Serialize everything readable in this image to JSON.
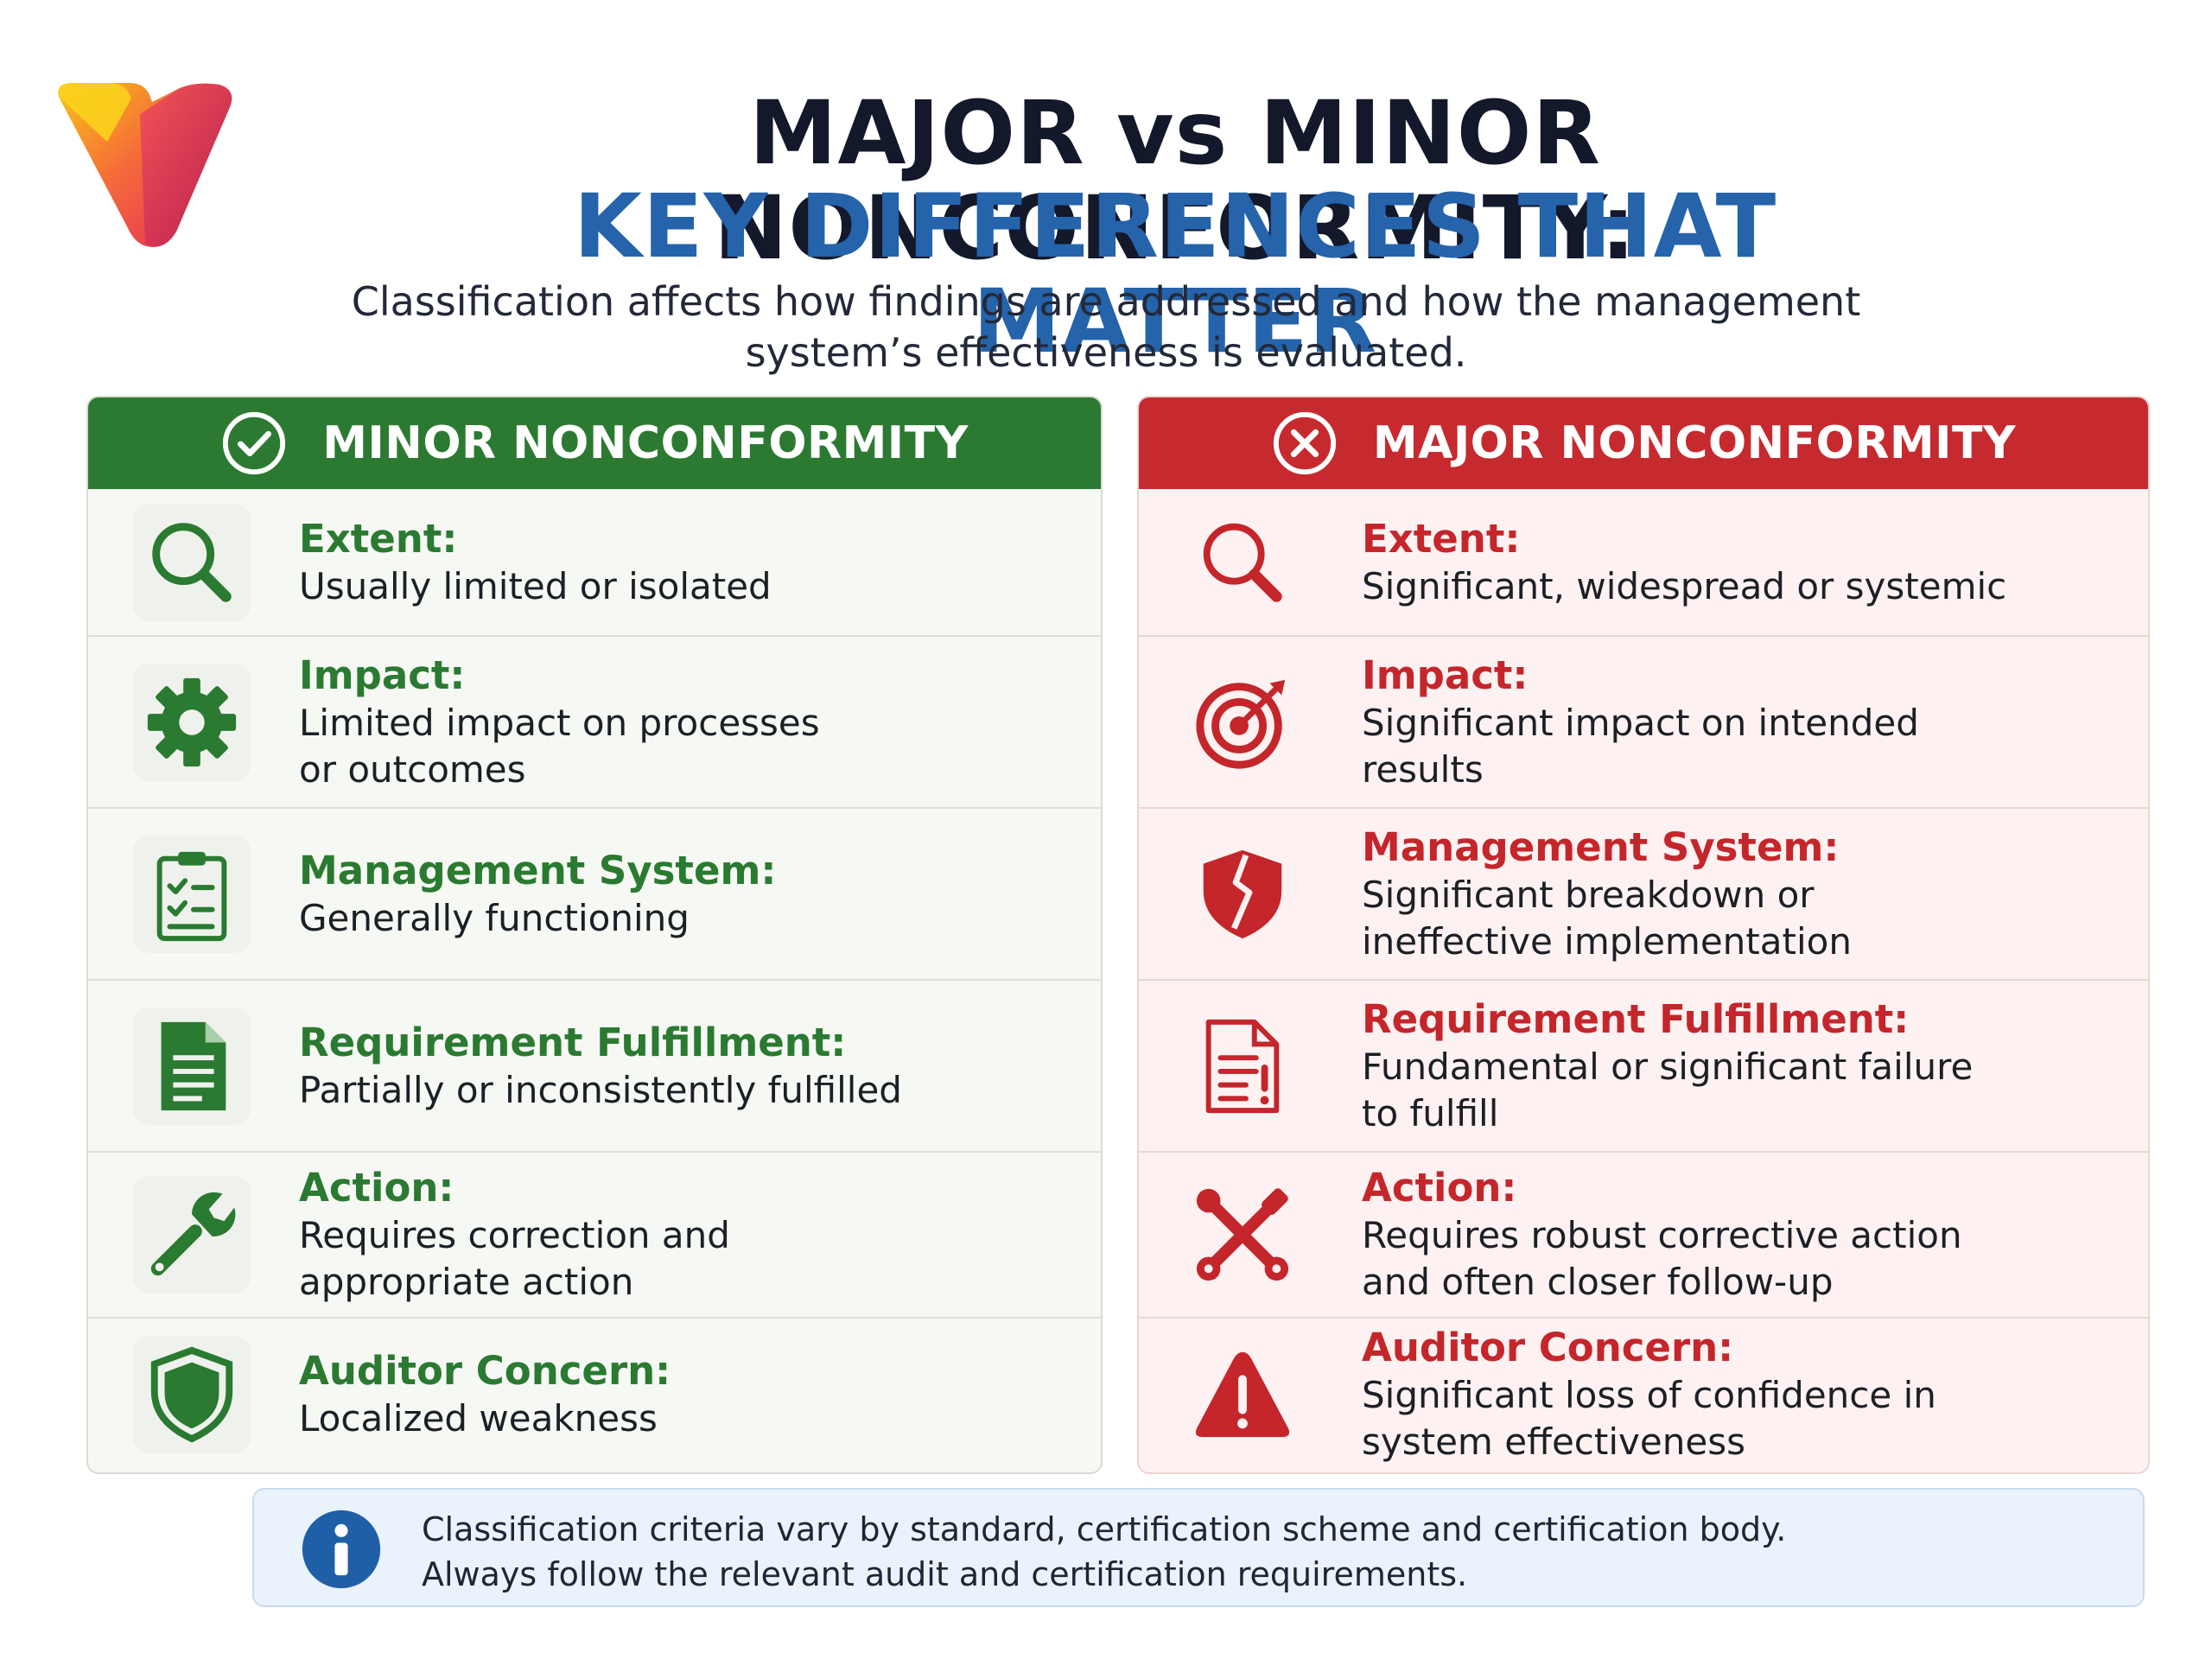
{
  "title_line1": "MAJOR vs MINOR NONCONFORMITY:",
  "title_line2": "KEY DIFFERENCES THAT MATTER",
  "subtitle": "Classification affects how findings are addressed and how the management system’s effectiveness is evaluated.",
  "colors": {
    "minor_accent": "#2c7a32",
    "major_accent": "#c62a2f",
    "title_blue": "#2563ab",
    "info_blue": "#1f5fa8"
  },
  "minor": {
    "heading": "MINOR NONCONFORMITY",
    "heading_icon": "check-circle-icon",
    "rows": [
      {
        "label": "Extent:",
        "desc": "Usually limited or isolated",
        "icon": "magnifier-icon"
      },
      {
        "label": "Impact:",
        "desc": "Limited impact on processes\nor outcomes",
        "icon": "gear-icon"
      },
      {
        "label": "Management System:",
        "desc": "Generally functioning",
        "icon": "clipboard-checklist-icon"
      },
      {
        "label": "Requirement Fulfillment:",
        "desc": "Partially or inconsistently fulfilled",
        "icon": "document-icon"
      },
      {
        "label": "Action:",
        "desc": "Requires correction and\nappropriate action",
        "icon": "wrench-icon"
      },
      {
        "label": "Auditor Concern:",
        "desc": "Localized weakness",
        "icon": "shield-icon"
      }
    ]
  },
  "major": {
    "heading": "MAJOR NONCONFORMITY",
    "heading_icon": "x-circle-icon",
    "rows": [
      {
        "label": "Extent:",
        "desc": "Significant, widespread or systemic",
        "icon": "magnifier-icon"
      },
      {
        "label": "Impact:",
        "desc": "Significant impact on intended\nresults",
        "icon": "target-icon"
      },
      {
        "label": "Management System:",
        "desc": "Significant breakdown or\nineffective implementation",
        "icon": "broken-shield-icon"
      },
      {
        "label": "Requirement Fulfillment:",
        "desc": "Fundamental or significant failure\nto fulfill",
        "icon": "document-alert-icon"
      },
      {
        "label": "Action:",
        "desc": "Requires robust corrective action\nand often closer follow-up",
        "icon": "crossed-tools-icon"
      },
      {
        "label": "Auditor Concern:",
        "desc": "Significant loss of confidence in\nsystem effectiveness",
        "icon": "warning-triangle-icon"
      }
    ]
  },
  "note": {
    "text": "Classification criteria vary by standard, certification scheme and certification body.\nAlways follow the relevant audit and certification requirements.",
    "icon": "info-icon"
  }
}
